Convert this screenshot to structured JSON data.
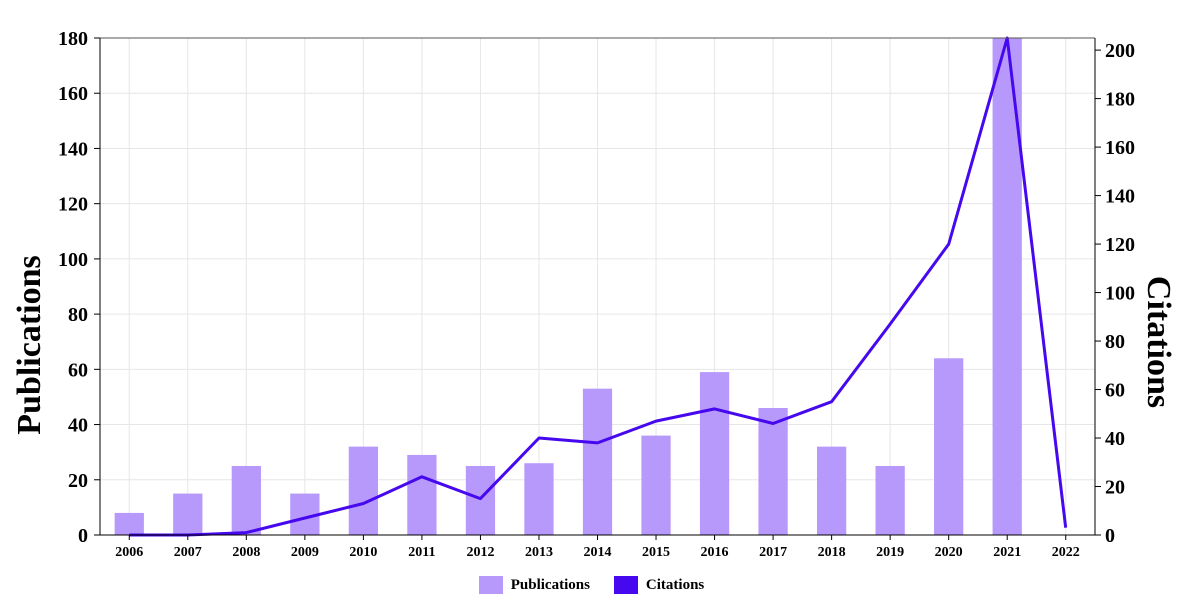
{
  "chart_data": {
    "type": "bar",
    "categories": [
      "2006",
      "2007",
      "2008",
      "2009",
      "2010",
      "2011",
      "2012",
      "2013",
      "2014",
      "2015",
      "2016",
      "2017",
      "2018",
      "2019",
      "2020",
      "2021",
      "2022"
    ],
    "series": [
      {
        "name": "Publications",
        "type": "bar",
        "axis": "left",
        "color": "#b799fb",
        "values": [
          8,
          15,
          25,
          15,
          32,
          29,
          25,
          26,
          53,
          36,
          59,
          46,
          32,
          25,
          64,
          180,
          0
        ]
      },
      {
        "name": "Citations",
        "type": "line",
        "axis": "right",
        "color": "#4608ee",
        "values": [
          0,
          0,
          1,
          7,
          13,
          24,
          15,
          40,
          38,
          47,
          52,
          46,
          55,
          87,
          120,
          205,
          3
        ]
      }
    ],
    "ylabel": "Publications",
    "y2label": "Citations",
    "ylim": [
      0,
      180
    ],
    "yticks": [
      0,
      20,
      40,
      60,
      80,
      100,
      120,
      140,
      160,
      180
    ],
    "y2lim": [
      0,
      205
    ],
    "y2ticks": [
      0,
      20,
      40,
      60,
      80,
      100,
      120,
      140,
      160,
      180,
      200
    ],
    "grid": true,
    "legend_position": "bottom-center"
  }
}
